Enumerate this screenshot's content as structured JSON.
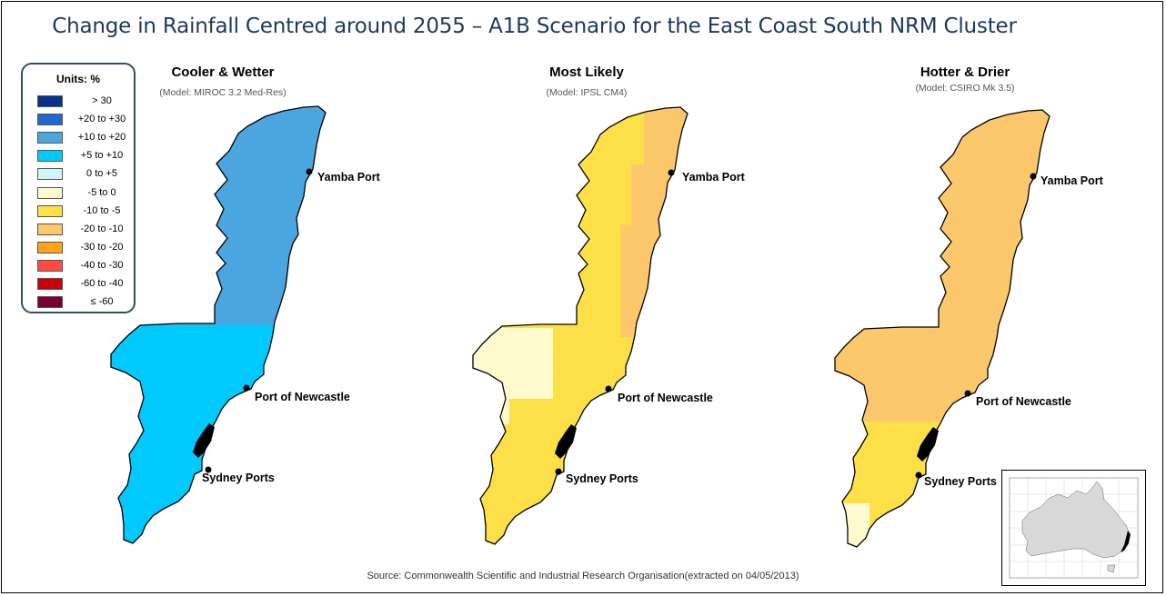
{
  "title": "Change in Rainfall Centred around 2055 – A1B Scenario for the East Coast South NRM Cluster",
  "legend": {
    "title": "Units: %",
    "items": [
      {
        "label": "> 30",
        "color": "#08318c"
      },
      {
        "label": "+20 to +30",
        "color": "#1f6ad1"
      },
      {
        "label": "+10 to +20",
        "color": "#4ba6e0"
      },
      {
        "label": "+5 to +10",
        "color": "#00c9ff"
      },
      {
        "label": "0 to +5",
        "color": "#cff6f8"
      },
      {
        "label": "-5 to 0",
        "color": "#fffacd"
      },
      {
        "label": "-10 to -5",
        "color": "#fde047"
      },
      {
        "label": "-20 to -10",
        "color": "#fdc86c"
      },
      {
        "label": "-30 to -20",
        "color": "#ffa31a"
      },
      {
        "label": "-40 to -30",
        "color": "#ff4b42"
      },
      {
        "label": "-60 to -40",
        "color": "#c8000c"
      },
      {
        "label": "≤ -60",
        "color": "#7a0033"
      }
    ]
  },
  "panels": [
    {
      "title": "Cooler & Wetter",
      "subtitle": "(Model: MIROC 3.2 Med-Res)",
      "north_color": "#4ba6e0",
      "east_color": "#4ba6e0",
      "west_color": "#00c9ff",
      "south_color": "#00c9ff",
      "north_class": "+10 to +20",
      "south_class": "+5 to +10"
    },
    {
      "title": "Most Likely",
      "subtitle": "(Model: IPSL CM4)",
      "north_color": "#fde047",
      "east_color": "#fdc86c",
      "west_color": "#fffacd",
      "south_color": "#fde047",
      "north_class": "-10 to -5",
      "east_class": "-20 to -10",
      "west_class": "-5 to 0"
    },
    {
      "title": "Hotter & Drier",
      "subtitle": "(Model: CSIRO Mk 3.5)",
      "north_color": "#fdc86c",
      "east_color": "#fdc86c",
      "west_color": "#fdc86c",
      "south_color": "#fde047",
      "tip_color": "#fffacd",
      "north_class": "-20 to -10",
      "south_class": "-10 to -5"
    }
  ],
  "ports": {
    "yamba": "Yamba Port",
    "newcastle": "Port of Newcastle",
    "sydney": "Sydney Ports"
  },
  "source": "Source: Commonwealth Scientific and Industrial Research Organisation(extracted on 04/05/2013)",
  "inset": {
    "land_color": "#d9d9d9",
    "highlight_color": "#000000"
  }
}
